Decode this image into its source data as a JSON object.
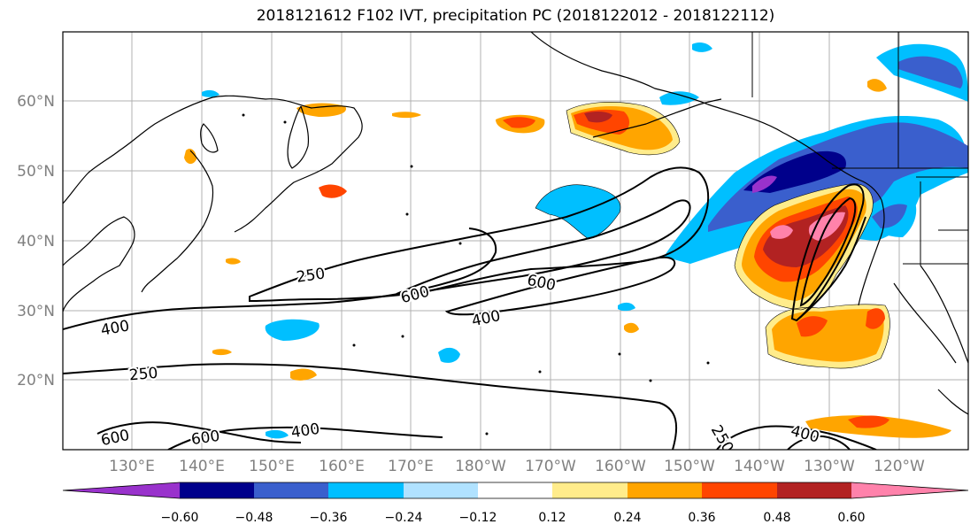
{
  "title": "2018121612 F102 IVT, precipitation PC (2018122012 - 2018122112)",
  "lat_labels": [
    "60°N",
    "50°N",
    "40°N",
    "30°N",
    "20°N"
  ],
  "lon_labels": [
    "130°E",
    "140°E",
    "150°E",
    "160°E",
    "170°E",
    "180°W",
    "170°W",
    "160°W",
    "150°W",
    "140°W",
    "130°W",
    "120°W"
  ],
  "contour_labels": [
    "250",
    "600",
    "600",
    "400",
    "400",
    "250",
    "600",
    "400",
    "250",
    "400",
    "600"
  ],
  "colorbar": {
    "tick_labels": [
      "−0.60",
      "−0.48",
      "−0.36",
      "−0.24",
      "−0.12",
      "0.12",
      "0.24",
      "0.36",
      "0.48",
      "0.60"
    ],
    "colors": [
      "#9932CC",
      "#00008B",
      "#3A5FCD",
      "#00BFFF",
      "#B0E2FF",
      "#FFFFFF",
      "#FFEC8B",
      "#FFA500",
      "#FF4500",
      "#B22222",
      "#FF82AB"
    ]
  }
}
